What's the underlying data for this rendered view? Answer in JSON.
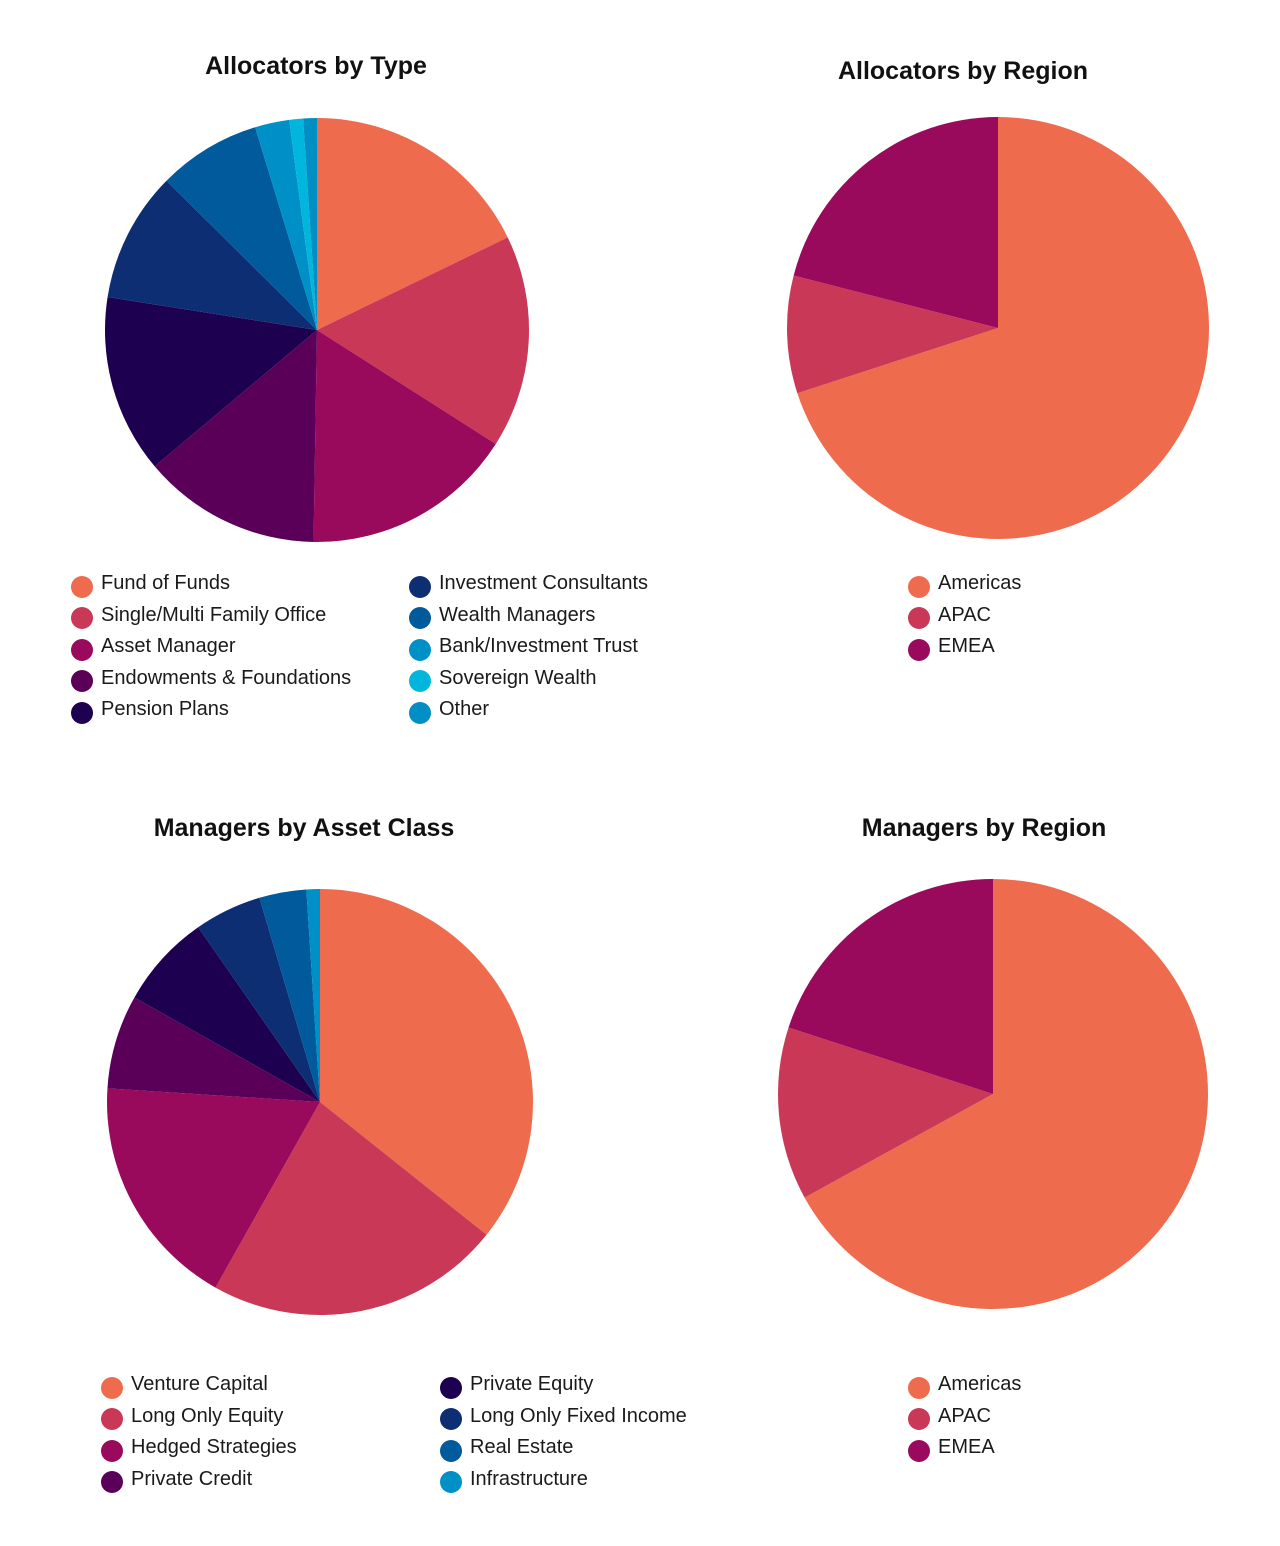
{
  "charts": [
    {
      "id": "allocators-type",
      "chart_data": {
        "type": "pie",
        "title": "Allocators by Type",
        "labels": [
          "Fund of Funds",
          "Single/Multi Family Office",
          "Asset Manager",
          "Endowments & Foundations",
          "Pension Plans",
          "Investment Consultants",
          "Wealth Managers",
          "Bank/Investment Trust",
          "Sovereign Wealth",
          "Other"
        ],
        "values": [
          17.0,
          15.5,
          15.5,
          13.0,
          13.0,
          9.5,
          7.5,
          2.5,
          1.0,
          1.0
        ],
        "colors": [
          "#EE6B4E",
          "#C93857",
          "#990A5C",
          "#5A0058",
          "#1E0050",
          "#0E2E73",
          "#005A9C",
          "#0090C8",
          "#00B6DD",
          "#008FC4"
        ]
      }
    },
    {
      "id": "allocators-region",
      "chart_data": {
        "type": "pie",
        "title": "Allocators by Region",
        "labels": [
          "Americas",
          "APAC",
          "EMEA"
        ],
        "values": [
          70.0,
          9.0,
          21.0
        ],
        "colors": [
          "#EE6B4E",
          "#C93857",
          "#990A5C"
        ]
      }
    },
    {
      "id": "managers-asset",
      "chart_data": {
        "type": "pie",
        "title": "Managers by Asset Class",
        "labels": [
          "Venture Capital",
          "Long Only Equity",
          "Hedged Strategies",
          "Private Credit",
          "Private Equity",
          "Long Only Fixed Income",
          "Real Estate",
          "Infrastructure"
        ],
        "values": [
          35.0,
          22.0,
          17.5,
          7.0,
          7.0,
          5.0,
          3.5,
          1.0
        ],
        "colors": [
          "#EE6B4E",
          "#C93857",
          "#990A5C",
          "#5A0058",
          "#1E0050",
          "#0E2E73",
          "#005A9C",
          "#0090C8"
        ]
      }
    },
    {
      "id": "managers-region",
      "chart_data": {
        "type": "pie",
        "title": "Managers by Region",
        "labels": [
          "Americas",
          "APAC",
          "EMEA"
        ],
        "values": [
          67.0,
          13.0,
          20.0
        ],
        "colors": [
          "#EE6B4E",
          "#C93857",
          "#990A5C"
        ]
      }
    }
  ]
}
